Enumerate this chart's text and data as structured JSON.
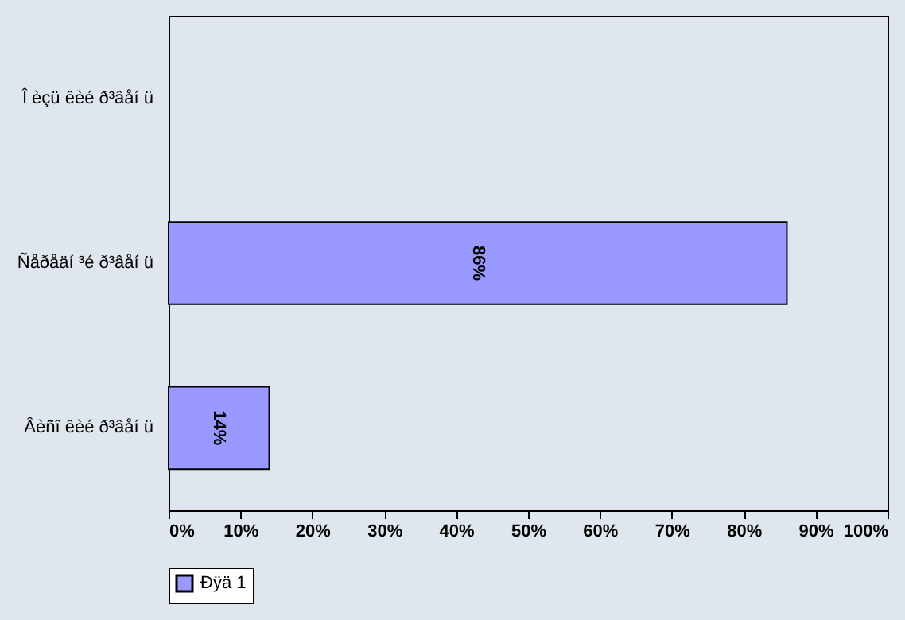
{
  "chart_data": {
    "type": "bar",
    "orientation": "horizontal",
    "categories": [
      "Î èçü êèé ð³âåí ü",
      "Ñåðåäí ³é ð³âåí ü",
      "Âèñî êèé ð³âåí ü"
    ],
    "series": [
      {
        "name": "Ðÿä 1",
        "color": "#9999ff",
        "values": [
          null,
          86,
          14
        ],
        "value_labels": [
          null,
          "86%",
          "14%"
        ]
      }
    ],
    "xlim": [
      0,
      100
    ],
    "xticks": [
      {
        "value": 0,
        "label": "0%"
      },
      {
        "value": 10,
        "label": "10%"
      },
      {
        "value": 20,
        "label": "20%"
      },
      {
        "value": 30,
        "label": "30%"
      },
      {
        "value": 40,
        "label": "40%"
      },
      {
        "value": 50,
        "label": "50%"
      },
      {
        "value": 60,
        "label": "60%"
      },
      {
        "value": 70,
        "label": "70%"
      },
      {
        "value": 80,
        "label": "80%"
      },
      {
        "value": 90,
        "label": "90%"
      },
      {
        "value": 100,
        "label": "100%"
      }
    ],
    "grid": false,
    "legend": "bottom"
  }
}
